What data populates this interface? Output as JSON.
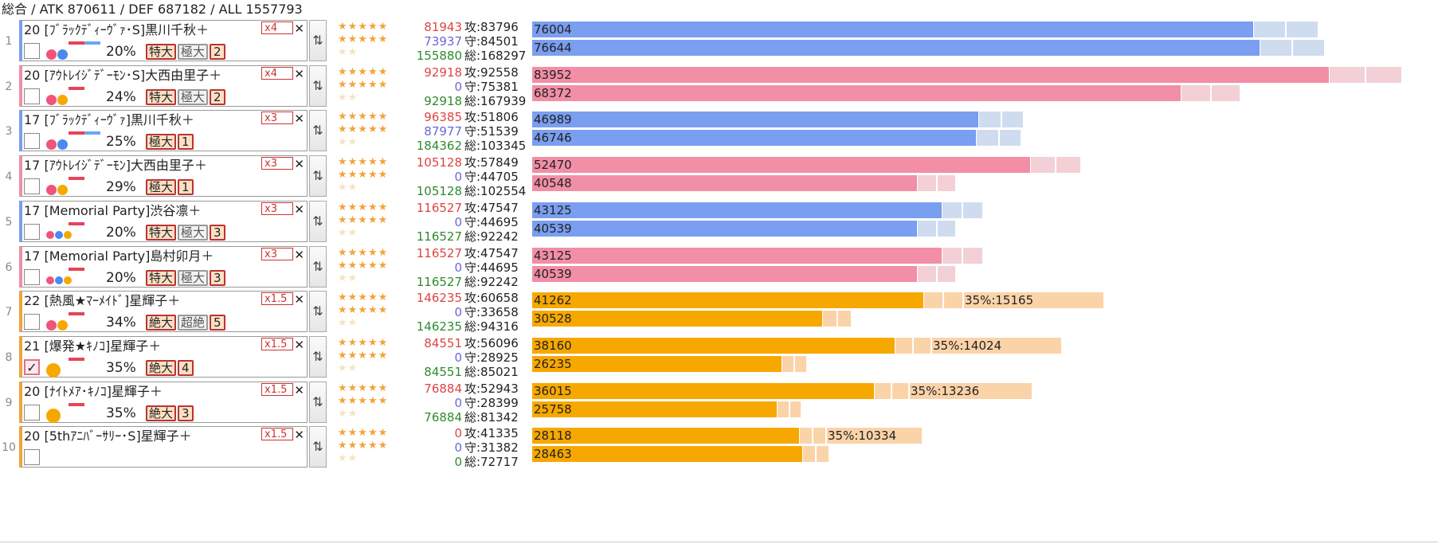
{
  "summary": "総合 / ATK 870611 / DEF 687182 / ALL 1557793",
  "colors": {
    "blue": "#7a9ef0",
    "blue_light": "#cfdcf0",
    "pink": "#f28ea6",
    "pink_light": "#f2d0d6",
    "orange": "#f7a800",
    "orange_light": "#fbd3a8",
    "dot_pink": "#f0547a",
    "dot_blue": "#4a8af0",
    "dot_orange": "#f7a800",
    "hbar_red": "#e5445a",
    "hbar_blue": "#6aa7f0"
  },
  "stars": {
    "row1": "★★★★★",
    "row2": "★★★★★",
    "row3": "★★"
  },
  "rows": [
    {
      "idx": "1",
      "type": "blue",
      "level_name": "20 [ﾌﾞﾗｯｸﾃﾞｨｰｳﾞｧ･S]黒川千秋＋",
      "mult": "x4",
      "checked": false,
      "check_mark": "",
      "dots": [
        "pink",
        "blue"
      ],
      "hbars": [
        "red",
        "blue"
      ],
      "pct": "20%",
      "tags": [
        {
          "t": "特大",
          "s": "hl"
        },
        {
          "t": "極大",
          "s": "gray"
        },
        {
          "t": "2",
          "s": "num"
        }
      ],
      "s1a": "81943",
      "s1b": "73937",
      "s1c": "155880",
      "atk": "攻:83796",
      "def": "守:84501",
      "tot": "総:168297",
      "bar1": 76004,
      "bar1_label": "76004",
      "bar1_ext": [
        160,
        82
      ],
      "bar2": 76644,
      "bar2_label": "76644",
      "bar2_ext": [
        160,
        82
      ],
      "note": "",
      "note_value": 0
    },
    {
      "idx": "2",
      "type": "pink",
      "level_name": "20 [ｱｳﾄﾚｲｼﾞﾃﾞｰﾓﾝ･S]大西由里子＋",
      "mult": "x4",
      "checked": false,
      "check_mark": "",
      "dots": [
        "pink",
        "orange"
      ],
      "hbars": [
        "red"
      ],
      "pct": "24%",
      "tags": [
        {
          "t": "特大",
          "s": "hl"
        },
        {
          "t": "極大",
          "s": "gray"
        },
        {
          "t": "2",
          "s": "num"
        }
      ],
      "s1a": "92918",
      "s1b": "0",
      "s1c": "92918",
      "atk": "攻:92558",
      "def": "守:75381",
      "tot": "総:167939",
      "bar1": 83952,
      "bar1_label": "83952",
      "bar1_ext": [
        160,
        92
      ],
      "bar2": 68372,
      "bar2_label": "68372",
      "bar2_ext": [
        160,
        75
      ],
      "note": "",
      "note_value": 0
    },
    {
      "idx": "3",
      "type": "blue",
      "level_name": "17 [ﾌﾞﾗｯｸﾃﾞｨｰｳﾞｧ]黒川千秋＋",
      "mult": "x3",
      "checked": false,
      "check_mark": "",
      "dots": [
        "pink",
        "blue"
      ],
      "hbars": [
        "red",
        "blue"
      ],
      "pct": "25%",
      "tags": [
        {
          "t": "極大",
          "s": "hl"
        },
        {
          "t": "1",
          "s": "num"
        }
      ],
      "s1a": "96385",
      "s1b": "87977",
      "s1c": "184362",
      "atk": "攻:51806",
      "def": "守:51539",
      "tot": "総:103345",
      "bar1": 46989,
      "bar1_label": "46989",
      "bar1_ext": [
        160,
        57
      ],
      "bar2": 46746,
      "bar2_label": "46746",
      "bar2_ext": [
        160,
        57
      ],
      "note": "",
      "note_value": 0
    },
    {
      "idx": "4",
      "type": "pink",
      "level_name": "17 [ｱｳﾄﾚｲｼﾞﾃﾞｰﾓﾝ]大西由里子＋",
      "mult": "x3",
      "checked": false,
      "check_mark": "",
      "dots": [
        "pink",
        "orange"
      ],
      "hbars": [
        "red"
      ],
      "pct": "29%",
      "tags": [
        {
          "t": "極大",
          "s": "hl"
        },
        {
          "t": "1",
          "s": "num"
        }
      ],
      "s1a": "105128",
      "s1b": "0",
      "s1c": "105128",
      "atk": "攻:57849",
      "def": "守:44705",
      "tot": "総:102554",
      "bar1": 52470,
      "bar1_label": "52470",
      "bar1_ext": [
        160,
        64
      ],
      "bar2": 40548,
      "bar2_label": "40548",
      "bar2_ext": [
        160,
        49
      ],
      "note": "",
      "note_value": 0
    },
    {
      "idx": "5",
      "type": "blue",
      "level_name": "17 [Memorial Party]渋谷凛＋",
      "mult": "x3",
      "checked": false,
      "check_mark": "",
      "dots": [
        "pink",
        "blue",
        "orange"
      ],
      "hbars": [
        "red"
      ],
      "pct": "20%",
      "tags": [
        {
          "t": "特大",
          "s": "hl"
        },
        {
          "t": "極大",
          "s": "gray"
        },
        {
          "t": "3",
          "s": "num"
        }
      ],
      "s1a": "116527",
      "s1b": "0",
      "s1c": "116527",
      "atk": "攻:47547",
      "def": "守:44695",
      "tot": "総:92242",
      "bar1": 43125,
      "bar1_label": "43125",
      "bar1_ext": [
        160,
        52
      ],
      "bar2": 40539,
      "bar2_label": "40539",
      "bar2_ext": [
        160,
        49
      ],
      "note": "",
      "note_value": 0
    },
    {
      "idx": "6",
      "type": "pink",
      "level_name": "17 [Memorial Party]島村卯月＋",
      "mult": "x3",
      "checked": false,
      "check_mark": "",
      "dots": [
        "pink",
        "blue",
        "orange"
      ],
      "hbars": [
        "red"
      ],
      "pct": "20%",
      "tags": [
        {
          "t": "特大",
          "s": "hl"
        },
        {
          "t": "極大",
          "s": "gray"
        },
        {
          "t": "3",
          "s": "num"
        }
      ],
      "s1a": "116527",
      "s1b": "0",
      "s1c": "116527",
      "atk": "攻:47547",
      "def": "守:44695",
      "tot": "総:92242",
      "bar1": 43125,
      "bar1_label": "43125",
      "bar1_ext": [
        160,
        52
      ],
      "bar2": 40539,
      "bar2_label": "40539",
      "bar2_ext": [
        160,
        49
      ],
      "note": "",
      "note_value": 0
    },
    {
      "idx": "7",
      "type": "orange",
      "level_name": "22 [熱風★ﾏｰﾒｲﾄﾞ]星輝子＋",
      "mult": "x1.5",
      "checked": false,
      "check_mark": "",
      "dots": [
        "pink",
        "orange"
      ],
      "hbars": [
        "red"
      ],
      "pct": "34%",
      "tags": [
        {
          "t": "絶大",
          "s": "hl"
        },
        {
          "t": "超絶",
          "s": "gray"
        },
        {
          "t": "5",
          "s": "num"
        }
      ],
      "s1a": "146235",
      "s1b": "0",
      "s1c": "146235",
      "atk": "攻:60658",
      "def": "守:33658",
      "tot": "総:94316",
      "bar1": 41262,
      "bar1_label": "41262",
      "bar1_ext": [
        160,
        50
      ],
      "bar2": 30528,
      "bar2_label": "30528",
      "bar2_ext": [
        160,
        37
      ],
      "note": "35%:15165",
      "note_value": 15165
    },
    {
      "idx": "8",
      "type": "orange",
      "level_name": "21 [爆発★ｷﾉｺ]星輝子＋",
      "mult": "x1.5",
      "checked": true,
      "check_mark": "✓",
      "dots": [
        "orange_big"
      ],
      "hbars": [
        "red"
      ],
      "pct": "35%",
      "tags": [
        {
          "t": "絶大",
          "s": "hl"
        },
        {
          "t": "4",
          "s": "num"
        }
      ],
      "s1a": "84551",
      "s1b": "0",
      "s1c": "84551",
      "atk": "攻:56096",
      "def": "守:28925",
      "tot": "総:85021",
      "bar1": 38160,
      "bar1_label": "38160",
      "bar1_ext": [
        160,
        46
      ],
      "bar2": 26235,
      "bar2_label": "26235",
      "bar2_ext": [
        160,
        32
      ],
      "note": "35%:14024",
      "note_value": 14024
    },
    {
      "idx": "9",
      "type": "orange",
      "level_name": "20 [ﾅｲﾄﾒｱ･ｷﾉｺ]星輝子＋",
      "mult": "x1.5",
      "checked": false,
      "check_mark": "",
      "dots": [
        "orange_big"
      ],
      "hbars": [
        "red"
      ],
      "pct": "35%",
      "tags": [
        {
          "t": "絶大",
          "s": "hl"
        },
        {
          "t": "3",
          "s": "num"
        }
      ],
      "s1a": "76884",
      "s1b": "0",
      "s1c": "76884",
      "atk": "攻:52943",
      "def": "守:28399",
      "tot": "総:81342",
      "bar1": 36015,
      "bar1_label": "36015",
      "bar1_ext": [
        160,
        44
      ],
      "bar2": 25758,
      "bar2_label": "25758",
      "bar2_ext": [
        160,
        31
      ],
      "note": "35%:13236",
      "note_value": 13236
    },
    {
      "idx": "10",
      "type": "orange",
      "level_name": "20 [5thｱﾆﾊﾞｰｻﾘｰ･S]星輝子＋",
      "mult": "x1.5",
      "checked": false,
      "check_mark": "",
      "dots": [],
      "hbars": [],
      "pct": "",
      "tags": [],
      "s1a": "0",
      "s1b": "0",
      "s1c": "0",
      "atk": "攻:41335",
      "def": "守:31382",
      "tot": "総:72717",
      "bar1": 28118,
      "bar1_label": "28118",
      "bar1_ext": [
        160,
        34
      ],
      "bar2": 28463,
      "bar2_label": "28463",
      "bar2_ext": [
        160,
        34
      ],
      "note": "35%:10334",
      "note_value": 10334
    }
  ]
}
